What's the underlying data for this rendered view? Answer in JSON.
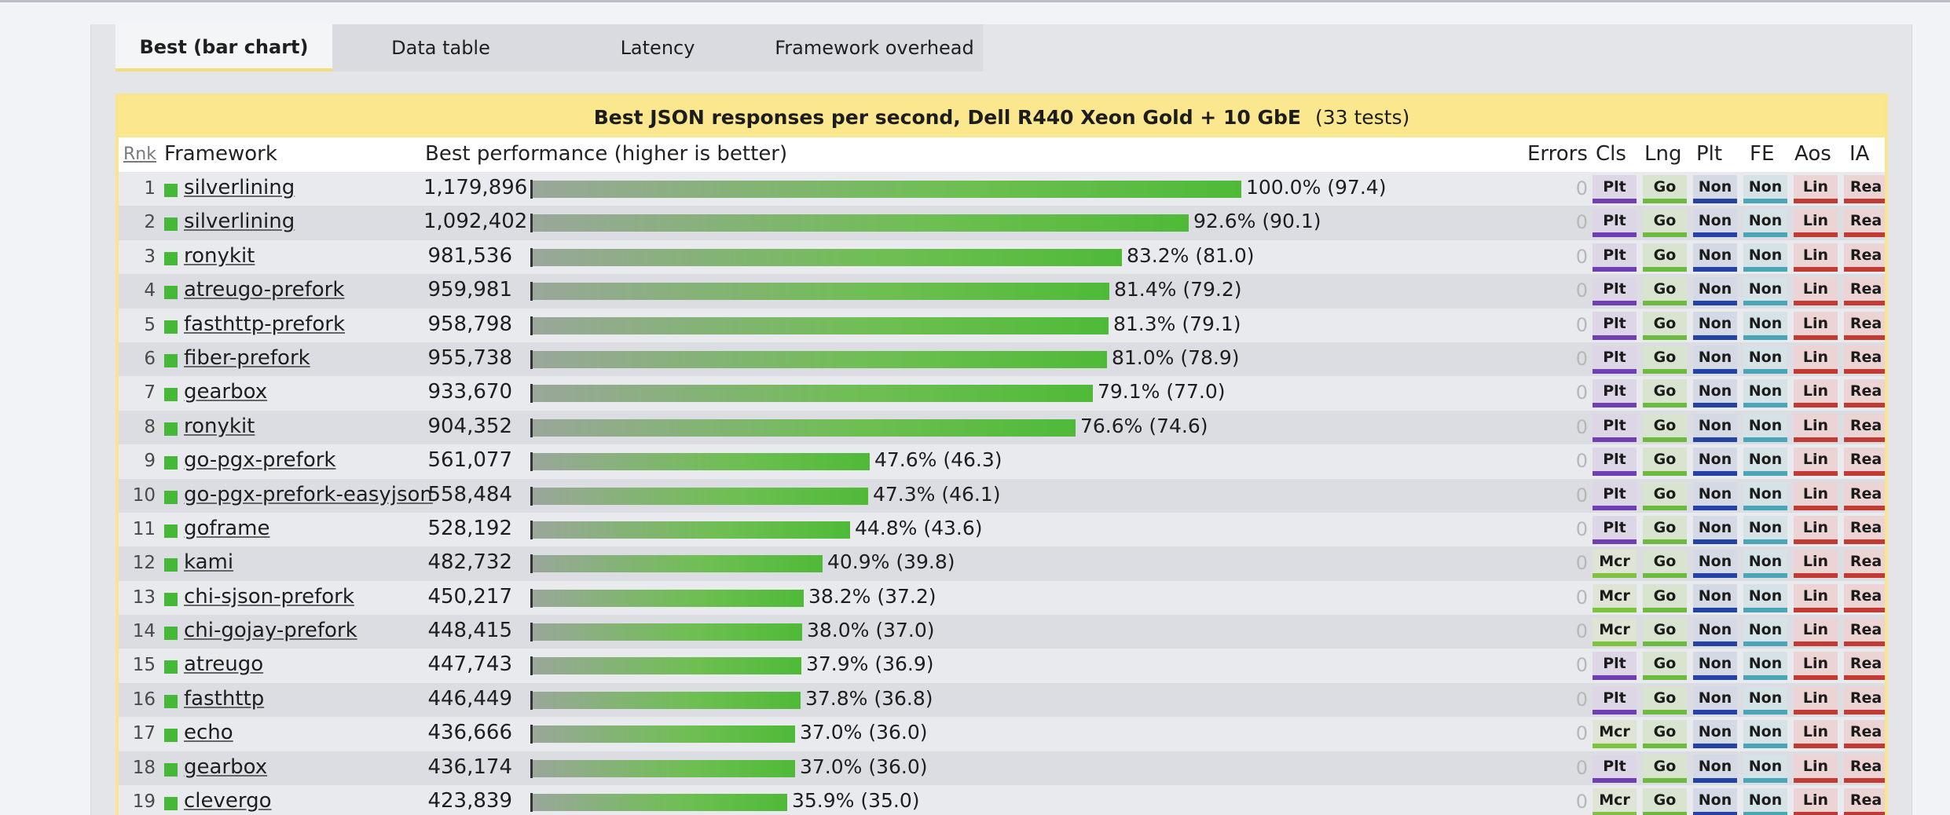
{
  "tabs": [
    "Best (bar chart)",
    "Data table",
    "Latency",
    "Framework overhead"
  ],
  "active_tab": 0,
  "chart": {
    "title": "Best JSON responses per second, Dell R440 Xeon Gold + 10 GbE",
    "test_count": "(33 tests)"
  },
  "columns": {
    "rank": "Rnk",
    "framework": "Framework",
    "performance": "Best performance (higher is better)",
    "errors": "Errors",
    "cls": "Cls",
    "lng": "Lng",
    "plt": "Plt",
    "fe": "FE",
    "aos": "Aos",
    "ia": "IA"
  },
  "colors": {
    "accent_yellow": "#fbe78e",
    "bar_green": "#4fba38",
    "platform_purple": "#6f3fb3",
    "micro_green": "#7dc33c",
    "lang_green": "#6dbb3e",
    "none_blue": "#2443a6",
    "fe_teal": "#4aa5b9",
    "os_red": "#c23a32"
  },
  "chart_data": {
    "type": "bar",
    "title": "Best JSON responses per second, Dell R440 Xeon Gold + 10 GbE",
    "metric": "responses per second",
    "categories": [
      "silverlining",
      "silverlining",
      "ronykit",
      "atreugo-prefork",
      "fasthttp-prefork",
      "fiber-prefork",
      "gearbox",
      "ronykit",
      "go-pgx-prefork",
      "go-pgx-prefork-easyjson",
      "goframe",
      "kami",
      "chi-sjson-prefork",
      "chi-gojay-prefork",
      "atreugo",
      "fasthttp",
      "echo",
      "gearbox",
      "clevergo"
    ],
    "values": [
      1179896,
      1092402,
      981536,
      959981,
      958798,
      955738,
      933670,
      904352,
      561077,
      558484,
      528192,
      482732,
      450217,
      448415,
      447743,
      446449,
      436666,
      436174,
      423839
    ],
    "ylim": [
      0,
      1179896
    ]
  },
  "rows": [
    {
      "rank": "1",
      "name": "silverlining",
      "value": "1,179,896",
      "pct": 100.0,
      "pct_label": "100.0% (97.4)",
      "errors": "0",
      "cls": "Plt",
      "lng": "Go",
      "plt": "Non",
      "fe": "Non",
      "aos": "Lin",
      "ia": "Rea"
    },
    {
      "rank": "2",
      "name": "silverlining",
      "value": "1,092,402",
      "pct": 92.6,
      "pct_label": "92.6% (90.1)",
      "errors": "0",
      "cls": "Plt",
      "lng": "Go",
      "plt": "Non",
      "fe": "Non",
      "aos": "Lin",
      "ia": "Rea"
    },
    {
      "rank": "3",
      "name": "ronykit",
      "value": "981,536",
      "pct": 83.2,
      "pct_label": "83.2% (81.0)",
      "errors": "0",
      "cls": "Plt",
      "lng": "Go",
      "plt": "Non",
      "fe": "Non",
      "aos": "Lin",
      "ia": "Rea"
    },
    {
      "rank": "4",
      "name": "atreugo-prefork",
      "value": "959,981",
      "pct": 81.4,
      "pct_label": "81.4% (79.2)",
      "errors": "0",
      "cls": "Plt",
      "lng": "Go",
      "plt": "Non",
      "fe": "Non",
      "aos": "Lin",
      "ia": "Rea"
    },
    {
      "rank": "5",
      "name": "fasthttp-prefork",
      "value": "958,798",
      "pct": 81.3,
      "pct_label": "81.3% (79.1)",
      "errors": "0",
      "cls": "Plt",
      "lng": "Go",
      "plt": "Non",
      "fe": "Non",
      "aos": "Lin",
      "ia": "Rea"
    },
    {
      "rank": "6",
      "name": "fiber-prefork",
      "value": "955,738",
      "pct": 81.0,
      "pct_label": "81.0% (78.9)",
      "errors": "0",
      "cls": "Plt",
      "lng": "Go",
      "plt": "Non",
      "fe": "Non",
      "aos": "Lin",
      "ia": "Rea"
    },
    {
      "rank": "7",
      "name": "gearbox",
      "value": "933,670",
      "pct": 79.1,
      "pct_label": "79.1% (77.0)",
      "errors": "0",
      "cls": "Plt",
      "lng": "Go",
      "plt": "Non",
      "fe": "Non",
      "aos": "Lin",
      "ia": "Rea"
    },
    {
      "rank": "8",
      "name": "ronykit",
      "value": "904,352",
      "pct": 76.6,
      "pct_label": "76.6% (74.6)",
      "errors": "0",
      "cls": "Plt",
      "lng": "Go",
      "plt": "Non",
      "fe": "Non",
      "aos": "Lin",
      "ia": "Rea"
    },
    {
      "rank": "9",
      "name": "go-pgx-prefork",
      "value": "561,077",
      "pct": 47.6,
      "pct_label": "47.6% (46.3)",
      "errors": "0",
      "cls": "Plt",
      "lng": "Go",
      "plt": "Non",
      "fe": "Non",
      "aos": "Lin",
      "ia": "Rea"
    },
    {
      "rank": "10",
      "name": "go-pgx-prefork-easyjson",
      "value": "558,484",
      "pct": 47.3,
      "pct_label": "47.3% (46.1)",
      "errors": "0",
      "cls": "Plt",
      "lng": "Go",
      "plt": "Non",
      "fe": "Non",
      "aos": "Lin",
      "ia": "Rea"
    },
    {
      "rank": "11",
      "name": "goframe",
      "value": "528,192",
      "pct": 44.8,
      "pct_label": "44.8% (43.6)",
      "errors": "0",
      "cls": "Plt",
      "lng": "Go",
      "plt": "Non",
      "fe": "Non",
      "aos": "Lin",
      "ia": "Rea"
    },
    {
      "rank": "12",
      "name": "kami",
      "value": "482,732",
      "pct": 40.9,
      "pct_label": "40.9% (39.8)",
      "errors": "0",
      "cls": "Mcr",
      "lng": "Go",
      "plt": "Non",
      "fe": "Non",
      "aos": "Lin",
      "ia": "Rea"
    },
    {
      "rank": "13",
      "name": "chi-sjson-prefork",
      "value": "450,217",
      "pct": 38.2,
      "pct_label": "38.2% (37.2)",
      "errors": "0",
      "cls": "Mcr",
      "lng": "Go",
      "plt": "Non",
      "fe": "Non",
      "aos": "Lin",
      "ia": "Rea"
    },
    {
      "rank": "14",
      "name": "chi-gojay-prefork",
      "value": "448,415",
      "pct": 38.0,
      "pct_label": "38.0% (37.0)",
      "errors": "0",
      "cls": "Mcr",
      "lng": "Go",
      "plt": "Non",
      "fe": "Non",
      "aos": "Lin",
      "ia": "Rea"
    },
    {
      "rank": "15",
      "name": "atreugo",
      "value": "447,743",
      "pct": 37.9,
      "pct_label": "37.9% (36.9)",
      "errors": "0",
      "cls": "Plt",
      "lng": "Go",
      "plt": "Non",
      "fe": "Non",
      "aos": "Lin",
      "ia": "Rea"
    },
    {
      "rank": "16",
      "name": "fasthttp",
      "value": "446,449",
      "pct": 37.8,
      "pct_label": "37.8% (36.8)",
      "errors": "0",
      "cls": "Plt",
      "lng": "Go",
      "plt": "Non",
      "fe": "Non",
      "aos": "Lin",
      "ia": "Rea"
    },
    {
      "rank": "17",
      "name": "echo",
      "value": "436,666",
      "pct": 37.0,
      "pct_label": "37.0% (36.0)",
      "errors": "0",
      "cls": "Mcr",
      "lng": "Go",
      "plt": "Non",
      "fe": "Non",
      "aos": "Lin",
      "ia": "Rea"
    },
    {
      "rank": "18",
      "name": "gearbox",
      "value": "436,174",
      "pct": 37.0,
      "pct_label": "37.0% (36.0)",
      "errors": "0",
      "cls": "Plt",
      "lng": "Go",
      "plt": "Non",
      "fe": "Non",
      "aos": "Lin",
      "ia": "Rea"
    },
    {
      "rank": "19",
      "name": "clevergo",
      "value": "423,839",
      "pct": 35.9,
      "pct_label": "35.9% (35.0)",
      "errors": "0",
      "cls": "Mcr",
      "lng": "Go",
      "plt": "Non",
      "fe": "Non",
      "aos": "Lin",
      "ia": "Rea"
    }
  ]
}
